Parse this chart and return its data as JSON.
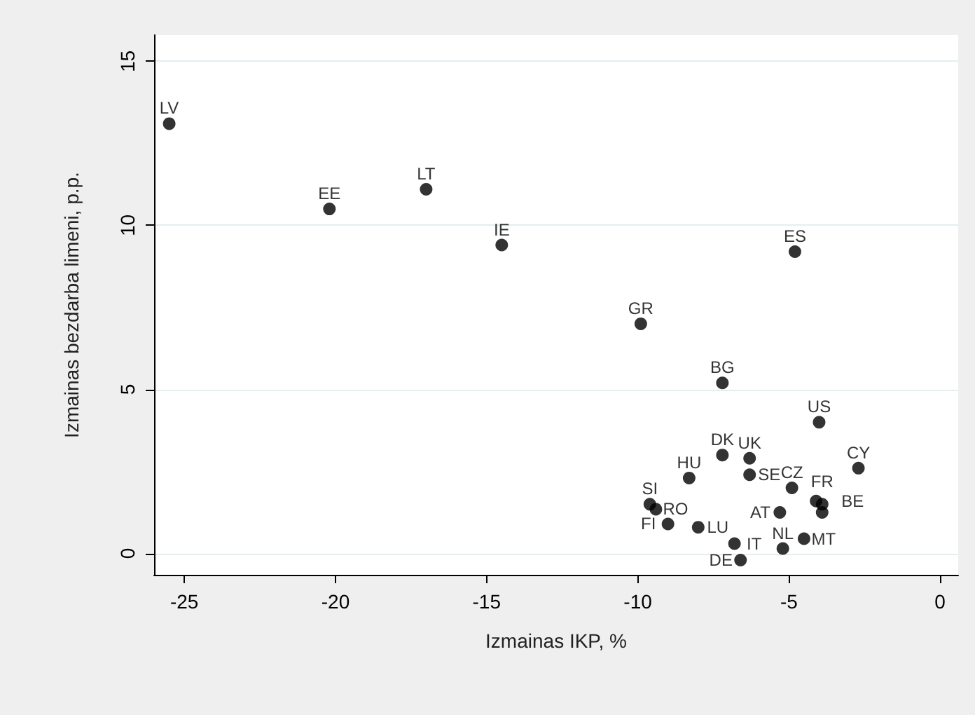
{
  "chart_data": {
    "type": "scatter",
    "xlabel": "Izmainas IKP, %",
    "ylabel": "Izmainas bezdarba limeni, p.p.",
    "x": [
      -25.5,
      -20.2,
      -17.0,
      -14.5,
      -9.9,
      -4.8,
      -7.2,
      -4.0,
      -7.2,
      -6.3,
      -6.3,
      -8.3,
      -2.7,
      -4.9,
      -4.1,
      -3.9,
      -3.9,
      -5.3,
      -9.6,
      -9.4,
      -9.0,
      -8.0,
      -6.8,
      -6.6,
      -5.2,
      -4.5
    ],
    "values": [
      13.1,
      10.5,
      11.1,
      9.4,
      7.0,
      9.2,
      5.2,
      4.0,
      3.0,
      2.9,
      2.4,
      2.3,
      2.6,
      2.0,
      1.6,
      1.5,
      1.25,
      1.25,
      1.5,
      1.35,
      0.9,
      0.8,
      0.3,
      -0.2,
      0.15,
      0.45
    ],
    "value_labels": [
      "LV",
      "EE",
      "LT",
      "IE",
      "GR",
      "ES",
      "BG",
      "US",
      "DK",
      "UK",
      "SE",
      "HU",
      "CY",
      "CZ",
      "BE",
      null,
      "FR",
      "AT",
      "SI",
      "RO",
      "FI",
      "LU",
      "IT",
      "DE",
      "NL",
      "MT"
    ],
    "color": "#000000",
    "marker": "circle",
    "xlim": [
      -26,
      0.6
    ],
    "xticks": [
      -25,
      -20,
      -15,
      -10,
      -5,
      0
    ],
    "ylim": [
      -0.65,
      15.8
    ],
    "yticks": [
      0,
      5,
      10,
      15
    ],
    "grid": "y"
  }
}
